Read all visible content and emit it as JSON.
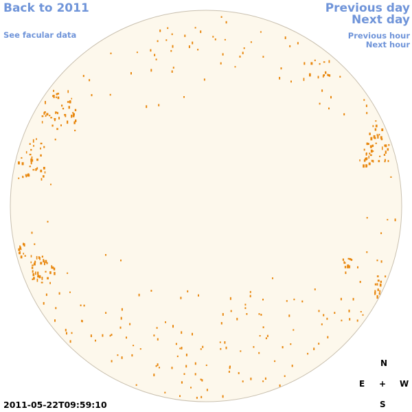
{
  "nav": {
    "back": "Back to 2011",
    "facular": "See facular data",
    "previous_day": "Previous day",
    "next_day": "Next day",
    "previous_hour": "Previous hour",
    "next_hour": "Next hour"
  },
  "compass": {
    "north": "N",
    "east": "E",
    "center": "+",
    "west": "W",
    "south": "S"
  },
  "timestamp": "2011-05-22T09:59:10",
  "colors": {
    "link": "#6f94d9",
    "disk_fill": "#fdf8ec",
    "disk_outline": "#c8bfae",
    "facula": "#e8870e"
  }
}
